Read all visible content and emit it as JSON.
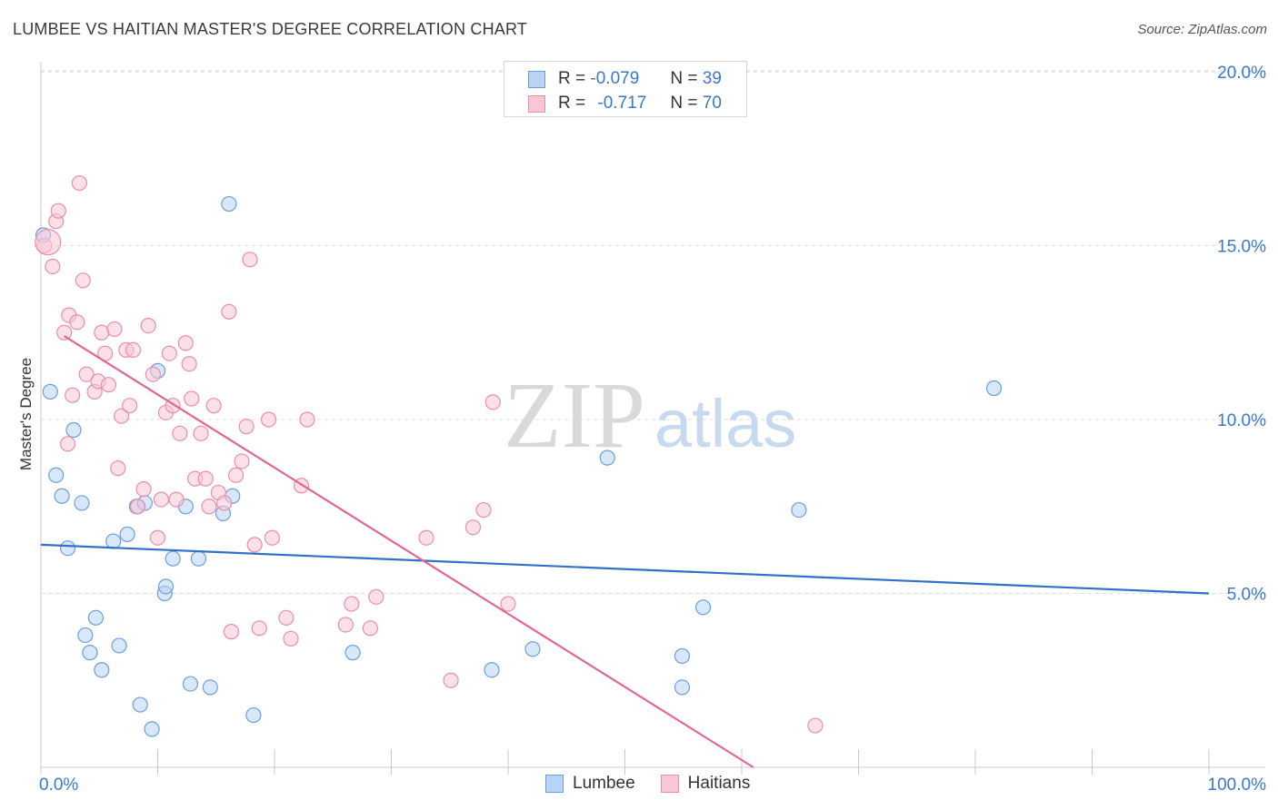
{
  "header": {
    "title": "LUMBEE VS HAITIAN MASTER'S DEGREE CORRELATION CHART",
    "source": "Source: ZipAtlas.com"
  },
  "legend_top": {
    "rows": [
      {
        "r_label": "R =",
        "r_value": "-0.079",
        "n_label": "N =",
        "n_value": "39"
      },
      {
        "r_label": "R =",
        "r_value": "-0.717",
        "n_label": "N =",
        "n_value": "70"
      }
    ]
  },
  "watermark": {
    "zip": "ZIP",
    "atlas": "atlas"
  },
  "colors": {
    "lumbee_fill": "#b8d3f5",
    "lumbee_stroke": "#6b9fdc",
    "lumbee_line": "#2f72c8",
    "haitian_fill": "#f9c6d6",
    "haitian_stroke": "#e98eaa",
    "haitian_line": "#e0688f",
    "tick_label": "#3a78c9",
    "grid": "#dddddd"
  },
  "chart_data": {
    "type": "scatter",
    "title": "LUMBEE VS HAITIAN MASTER'S DEGREE CORRELATION CHART",
    "xlabel": "",
    "ylabel": "Master's Degree",
    "xlim": [
      0,
      100
    ],
    "ylim": [
      0,
      20.5
    ],
    "x_tick_labels": [
      "0.0%",
      "100.0%"
    ],
    "y_ticks": [
      5,
      10,
      15,
      20
    ],
    "y_tick_labels": [
      "5.0%",
      "10.0%",
      "15.0%",
      "20.0%"
    ],
    "grid": true,
    "legend_position": "bottom-center",
    "series": [
      {
        "name": "Lumbee",
        "r": -0.079,
        "n": 39,
        "trend": {
          "x": [
            0,
            100
          ],
          "y": [
            6.4,
            5.0
          ]
        },
        "points": [
          [
            0.2,
            15.3
          ],
          [
            0.8,
            10.8
          ],
          [
            1.3,
            8.4
          ],
          [
            1.8,
            7.8
          ],
          [
            2.3,
            6.3
          ],
          [
            2.8,
            9.7
          ],
          [
            3.5,
            7.6
          ],
          [
            3.8,
            3.8
          ],
          [
            4.2,
            3.3
          ],
          [
            4.7,
            4.3
          ],
          [
            5.2,
            2.8
          ],
          [
            6.2,
            6.5
          ],
          [
            6.7,
            3.5
          ],
          [
            7.4,
            6.7
          ],
          [
            8.2,
            7.5
          ],
          [
            8.5,
            1.8
          ],
          [
            8.9,
            7.6
          ],
          [
            9.5,
            1.1
          ],
          [
            10.0,
            11.4
          ],
          [
            10.6,
            5.0
          ],
          [
            10.7,
            5.2
          ],
          [
            11.3,
            6.0
          ],
          [
            12.4,
            7.5
          ],
          [
            12.8,
            2.4
          ],
          [
            13.5,
            6.0
          ],
          [
            14.5,
            2.3
          ],
          [
            15.6,
            7.3
          ],
          [
            16.1,
            16.2
          ],
          [
            16.4,
            7.8
          ],
          [
            18.2,
            1.5
          ],
          [
            26.7,
            3.3
          ],
          [
            38.6,
            2.8
          ],
          [
            42.1,
            3.4
          ],
          [
            48.5,
            8.9
          ],
          [
            54.9,
            3.2
          ],
          [
            54.9,
            2.3
          ],
          [
            56.7,
            4.6
          ],
          [
            64.9,
            7.4
          ],
          [
            81.6,
            10.9
          ]
        ]
      },
      {
        "name": "Haitians",
        "r": -0.717,
        "n": 70,
        "trend": {
          "x": [
            2,
            61
          ],
          "y": [
            12.4,
            0
          ]
        },
        "points": [
          [
            0.3,
            15.0
          ],
          [
            1.0,
            14.4
          ],
          [
            1.3,
            15.7
          ],
          [
            1.5,
            16.0
          ],
          [
            2.0,
            12.5
          ],
          [
            2.3,
            9.3
          ],
          [
            2.4,
            13.0
          ],
          [
            2.7,
            10.7
          ],
          [
            3.1,
            12.8
          ],
          [
            3.3,
            16.8
          ],
          [
            3.6,
            14.0
          ],
          [
            3.9,
            11.3
          ],
          [
            4.6,
            10.8
          ],
          [
            4.9,
            11.1
          ],
          [
            5.2,
            12.5
          ],
          [
            5.5,
            11.9
          ],
          [
            5.8,
            11.0
          ],
          [
            6.3,
            12.6
          ],
          [
            6.6,
            8.6
          ],
          [
            6.9,
            10.1
          ],
          [
            7.3,
            12.0
          ],
          [
            7.6,
            10.4
          ],
          [
            7.9,
            12.0
          ],
          [
            8.3,
            7.5
          ],
          [
            8.8,
            8.0
          ],
          [
            9.2,
            12.7
          ],
          [
            9.6,
            11.3
          ],
          [
            10.0,
            6.6
          ],
          [
            10.3,
            7.7
          ],
          [
            10.7,
            10.2
          ],
          [
            11.0,
            11.9
          ],
          [
            11.3,
            10.4
          ],
          [
            11.6,
            7.7
          ],
          [
            11.9,
            9.6
          ],
          [
            12.4,
            12.2
          ],
          [
            12.7,
            11.6
          ],
          [
            12.9,
            10.6
          ],
          [
            13.2,
            8.3
          ],
          [
            13.7,
            9.6
          ],
          [
            14.1,
            8.3
          ],
          [
            14.4,
            7.5
          ],
          [
            14.8,
            10.4
          ],
          [
            15.2,
            7.9
          ],
          [
            15.7,
            7.6
          ],
          [
            16.1,
            13.1
          ],
          [
            16.3,
            3.9
          ],
          [
            16.7,
            8.4
          ],
          [
            17.2,
            8.8
          ],
          [
            17.6,
            9.8
          ],
          [
            17.9,
            14.6
          ],
          [
            18.3,
            6.4
          ],
          [
            18.7,
            4.0
          ],
          [
            19.5,
            10.0
          ],
          [
            19.8,
            6.6
          ],
          [
            21.0,
            4.3
          ],
          [
            21.4,
            3.7
          ],
          [
            22.3,
            8.1
          ],
          [
            22.8,
            10.0
          ],
          [
            26.1,
            4.1
          ],
          [
            26.6,
            4.7
          ],
          [
            28.2,
            4.0
          ],
          [
            28.7,
            4.9
          ],
          [
            33.0,
            6.6
          ],
          [
            35.1,
            2.5
          ],
          [
            37.0,
            6.9
          ],
          [
            37.9,
            7.4
          ],
          [
            38.7,
            10.5
          ],
          [
            40.0,
            4.7
          ],
          [
            66.3,
            1.2
          ],
          [
            0.6,
            15.1
          ]
        ]
      }
    ]
  },
  "legend_bottom": {
    "items": [
      "Lumbee",
      "Haitians"
    ]
  }
}
